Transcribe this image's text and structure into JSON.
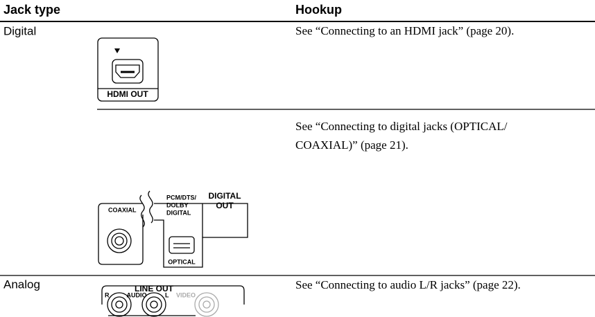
{
  "table": {
    "headers": [
      "Jack type",
      "Hookup"
    ],
    "rows": [
      {
        "jack_type": "Digital",
        "hookup": [
          "See “Connecting to an HDMI jack” (page 20)."
        ],
        "labels": {
          "hdmi_out": "HDMI OUT"
        }
      },
      {
        "hookup": [
          "See “Connecting to digital jacks (OPTICAL/",
          "COAXIAL)” (page 21)."
        ],
        "labels": {
          "coaxial": "COAXIAL",
          "pcm": [
            "PCM/DTS/",
            "DOLBY",
            "DIGITAL"
          ],
          "digital_out": [
            "DIGITAL",
            "OUT"
          ],
          "optical": "OPTICAL"
        }
      },
      {
        "jack_type": "Analog",
        "hookup": [
          "See “Connecting to audio L/R jacks” (page 22)."
        ],
        "labels": {
          "line_out": "LINE OUT",
          "r": "R",
          "audio": "AUDIO",
          "l": "L",
          "video": "VIDEO"
        }
      }
    ]
  }
}
